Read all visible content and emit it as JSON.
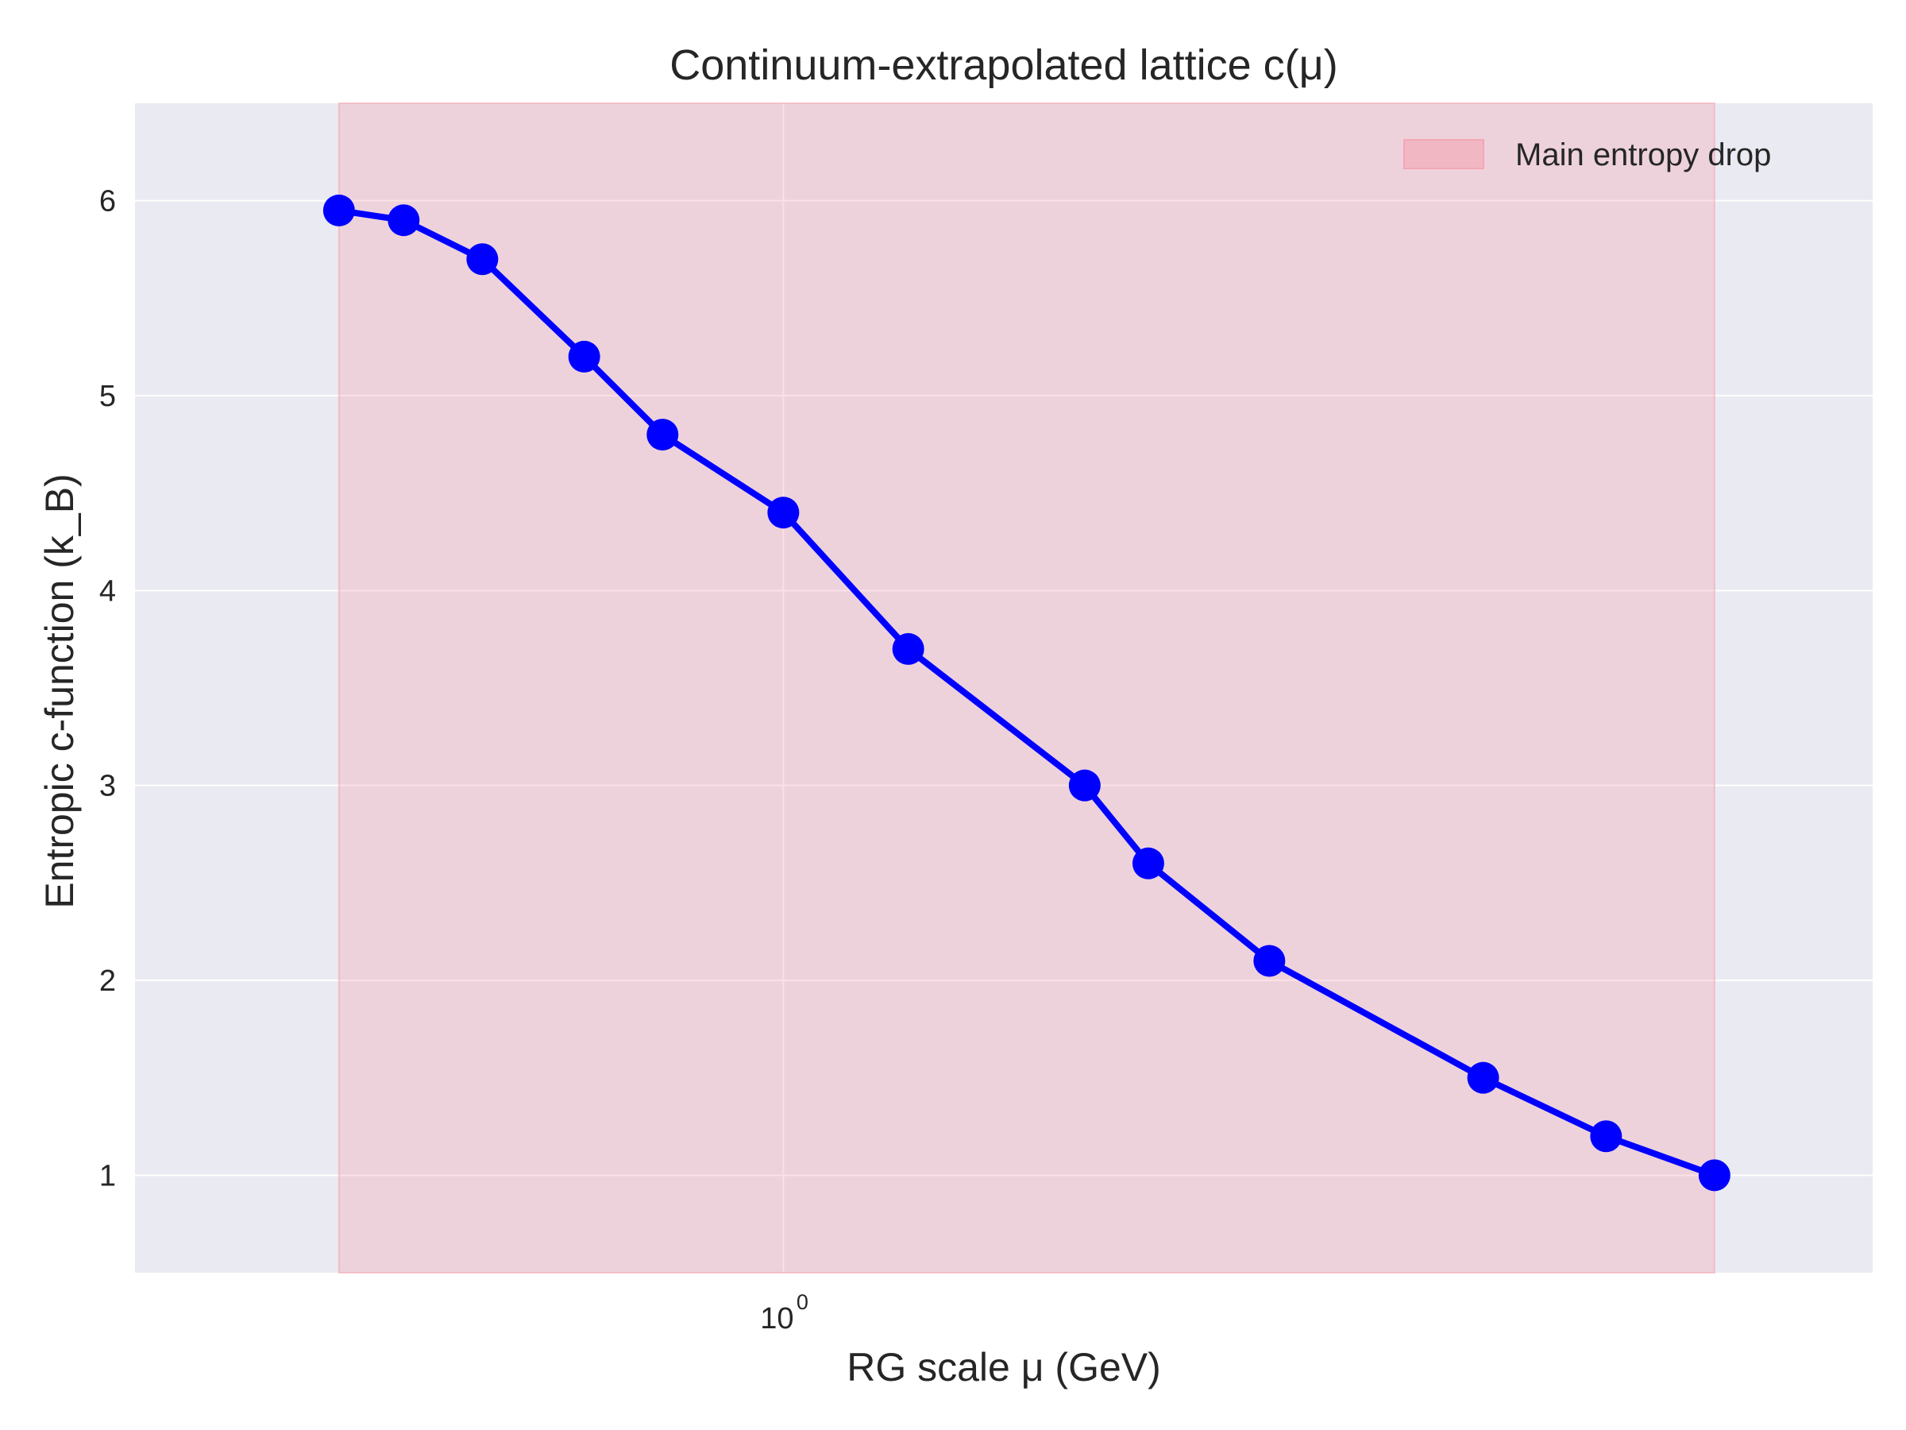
{
  "chart_data": {
    "type": "line",
    "title": "Continuum-extrapolated lattice c(μ)",
    "xlabel": "RG scale μ (GeV)",
    "ylabel": "Entropic c-function (k_B)",
    "xscale": "log",
    "xlim": [
      0.418,
      4.33
    ],
    "ylim": [
      0.5,
      6.5
    ],
    "x_ticks": [
      {
        "value": 1,
        "base": "10",
        "exponent": "0"
      }
    ],
    "y_ticks": [
      1,
      2,
      3,
      4,
      5,
      6
    ],
    "grid": true,
    "legend": "top-right",
    "shaded_region": {
      "x_range": [
        0.55,
        3.5
      ],
      "label": "Main entropy drop",
      "color": "#f4a6b4"
    },
    "series": [
      {
        "color": "#0000ff",
        "x": [
          0.55,
          0.6,
          0.667,
          0.765,
          0.85,
          1.0,
          1.183,
          1.5,
          1.634,
          1.923,
          2.564,
          3.025,
          3.5
        ],
        "y": [
          5.95,
          5.9,
          5.7,
          5.2,
          4.8,
          4.4,
          3.7,
          3.0,
          2.6,
          2.1,
          1.5,
          1.2,
          1.0
        ]
      }
    ]
  }
}
